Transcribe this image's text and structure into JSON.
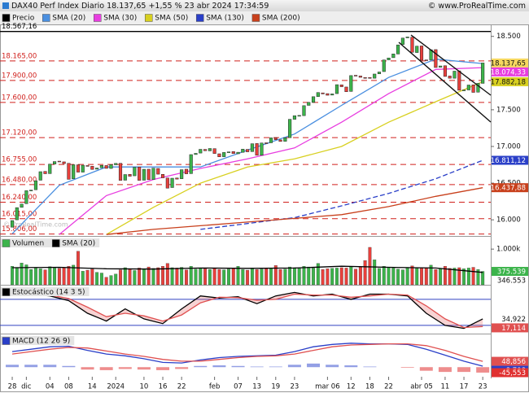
{
  "header": {
    "title": "DAX40 Perf Index Diario 18.137,65 +1,55 % 23 abr 2024 17:34:59",
    "source": "© www.ProRealTime.com"
  },
  "chart_data": [
    {
      "type": "candlestick",
      "legend": "Precio",
      "legend_color": "#000000",
      "up_color": "#3cb44b",
      "down_color": "#e8403c",
      "x": [
        0,
        1,
        2,
        3,
        4,
        5,
        6,
        7,
        8,
        9,
        10,
        11,
        12,
        13,
        14,
        15,
        16,
        17,
        18,
        19,
        20,
        21,
        22,
        23,
        24,
        25,
        26,
        27,
        28,
        29,
        30,
        31,
        32,
        33,
        34,
        35,
        36,
        37,
        38,
        39,
        40,
        41,
        42,
        43,
        44,
        45,
        46,
        47,
        48,
        49,
        50,
        51,
        52,
        53,
        54,
        55,
        56,
        57,
        58,
        59,
        60,
        61,
        62,
        63,
        64,
        65,
        66,
        67,
        68,
        69,
        70,
        71,
        72,
        73,
        74,
        75,
        76,
        77,
        78,
        79,
        80,
        81,
        82,
        83,
        84,
        85,
        86,
        87,
        88,
        89,
        90,
        91,
        92,
        93,
        94,
        95,
        96,
        97,
        98,
        99,
        100
      ],
      "open": [
        15900,
        16000,
        16170,
        16220,
        16400,
        16410,
        16540,
        16660,
        16630,
        16760,
        16800,
        16790,
        16770,
        16560,
        16750,
        16650,
        16740,
        16730,
        16690,
        16710,
        16740,
        16700,
        16750,
        16770,
        16540,
        16620,
        16600,
        16720,
        16540,
        16690,
        16550,
        16700,
        16620,
        16570,
        16440,
        16570,
        16560,
        16690,
        16630,
        16890,
        16910,
        16960,
        16940,
        16970,
        16900,
        16860,
        16920,
        16930,
        16900,
        16920,
        16960,
        16930,
        17040,
        16880,
        17050,
        17050,
        17120,
        17090,
        17070,
        17120,
        17370,
        17420,
        17420,
        17560,
        17600,
        17680,
        17730,
        17720,
        17700,
        17720,
        17840,
        17810,
        17750,
        17970,
        17960,
        17940,
        17940,
        17930,
        17990,
        18020,
        18180,
        18210,
        18260,
        18390,
        18480,
        18490,
        18280,
        18370,
        18180,
        18180,
        18320,
        18080,
        18100,
        17960,
        17930,
        18030,
        17770,
        17770,
        17840,
        17740,
        17860
      ],
      "close": [
        15990,
        16166,
        16215,
        16397,
        16405,
        16533,
        16656,
        16628,
        16759,
        16794,
        16791,
        16766,
        16552,
        16751,
        16650,
        16744,
        16733,
        16687,
        16706,
        16742,
        16701,
        16752,
        16769,
        16538,
        16617,
        16594,
        16716,
        16538,
        16689,
        16547,
        16704,
        16622,
        16572,
        16432,
        16567,
        16555,
        16683,
        16627,
        16889,
        16906,
        16961,
        16942,
        16972,
        16904,
        16859,
        16918,
        16926,
        16904,
        16921,
        16963,
        16927,
        17037,
        16880,
        17047,
        17046,
        17117,
        17092,
        17068,
        17118,
        17370,
        17419,
        17423,
        17556,
        17601,
        17678,
        17735,
        17716,
        17698,
        17716,
        17842,
        17814,
        17746,
        17966,
        17961,
        17942,
        17936,
        17933,
        17987,
        18015,
        18179,
        18206,
        18261,
        18384,
        18477,
        18492,
        18283,
        18367,
        18175,
        18175,
        18318,
        18076,
        18097,
        17954,
        17930,
        18026,
        17766,
        17770,
        17837,
        17737,
        17860,
        18137.65
      ],
      "close_label": "18.137,65",
      "series": [
        {
          "name": "SMA (20)",
          "color": "#4a8fe0",
          "x": [
            0,
            10,
            20,
            30,
            40,
            50,
            60,
            70,
            80,
            90,
            100
          ],
          "values": [
            15810,
            16470,
            16720,
            16720,
            16720,
            16950,
            17170,
            17560,
            17940,
            18190,
            18130
          ]
        },
        {
          "name": "SMA (30)",
          "color": "#e83ee0",
          "x": [
            0,
            10,
            20,
            30,
            40,
            50,
            60,
            70,
            80,
            90,
            100
          ],
          "values": [
            null,
            15800,
            16330,
            16550,
            16700,
            16830,
            16980,
            17330,
            17720,
            18050,
            18074.33
          ],
          "end_label": "18.074,33"
        },
        {
          "name": "SMA (50)",
          "color": "#d8d020",
          "x": [
            0,
            10,
            20,
            30,
            40,
            50,
            60,
            70,
            80,
            90,
            100
          ],
          "values": [
            null,
            null,
            15800,
            16170,
            16500,
            16720,
            16830,
            17000,
            17330,
            17610,
            17882.18
          ],
          "end_label": "17.882,18"
        },
        {
          "name": "SMA (130)",
          "color": "#2a3fc8",
          "dash": true,
          "x": [
            0,
            10,
            20,
            30,
            40,
            50,
            60,
            70,
            80,
            90,
            100
          ],
          "values": [
            null,
            null,
            null,
            null,
            15870,
            15950,
            16030,
            16190,
            16360,
            16560,
            16811.12
          ],
          "end_label": "16.811,12"
        },
        {
          "name": "SMA (200)",
          "color": "#c8401c",
          "x": [
            0,
            10,
            20,
            30,
            40,
            50,
            60,
            70,
            80,
            90,
            100
          ],
          "values": [
            null,
            null,
            15800,
            15870,
            15920,
            15970,
            16020,
            16070,
            16180,
            16320,
            16437.88
          ],
          "end_label": "16.437,88"
        }
      ],
      "levels": [
        {
          "value": 18567.16,
          "label": "18.567,16",
          "color": "#000000"
        },
        {
          "value": 18165,
          "label": "18.165,00",
          "color": "#d0201c"
        },
        {
          "value": 17900,
          "label": "17.900,00",
          "color": "#d0201c"
        },
        {
          "value": 17600,
          "label": "17.600,00",
          "color": "#d0201c"
        },
        {
          "value": 17120,
          "label": "17.120,00",
          "color": "#d0201c"
        },
        {
          "value": 16755,
          "label": "16.755,00",
          "color": "#d0201c"
        },
        {
          "value": 16480,
          "label": "16.480,00",
          "color": "#d0201c"
        },
        {
          "value": 16240,
          "label": "16.240,00",
          "color": "#d0201c"
        },
        {
          "value": 16015,
          "label": "16.015,00",
          "color": "#d0201c"
        },
        {
          "value": 15806,
          "label": "15.806,00",
          "color": "#d0201c"
        }
      ],
      "watermark": "© ProRealTime.com",
      "xlim": [
        -2.6,
        101.7
      ],
      "xticks": [
        {
          "value": 0,
          "label": "28"
        },
        {
          "value": 3,
          "label": "dic"
        },
        {
          "value": 8,
          "label": "04"
        },
        {
          "value": 12,
          "label": "08"
        },
        {
          "value": 17,
          "label": "14"
        },
        {
          "value": 22,
          "label": "2024"
        },
        {
          "value": 28,
          "label": "10"
        },
        {
          "value": 32,
          "label": "16"
        },
        {
          "value": 36,
          "label": "22"
        },
        {
          "value": 43,
          "label": "feb"
        },
        {
          "value": 48,
          "label": "07"
        },
        {
          "value": 52,
          "label": "13"
        },
        {
          "value": 56,
          "label": "19"
        },
        {
          "value": 60,
          "label": "23"
        },
        {
          "value": 67,
          "label": "mar 06"
        },
        {
          "value": 72,
          "label": "12"
        },
        {
          "value": 76,
          "label": "18"
        },
        {
          "value": 80,
          "label": "22"
        },
        {
          "value": 87,
          "label": "abr 05"
        },
        {
          "value": 92,
          "label": "11"
        },
        {
          "value": 96,
          "label": "17"
        },
        {
          "value": 100,
          "label": "23"
        }
      ],
      "ylim": [
        15780,
        18630
      ],
      "yticks": [
        {
          "value": 18500,
          "label": "18.500"
        },
        {
          "value": 17500,
          "label": "17.500"
        },
        {
          "value": 17000,
          "label": "17.000"
        },
        {
          "value": 16500,
          "label": "16.500"
        },
        {
          "value": 16000,
          "label": "16.000"
        }
      ]
    },
    {
      "type": "volume",
      "legend": "Volumen",
      "legend_color": "#3cb44b",
      "values": [
        520000,
        480000,
        610000,
        560000,
        430000,
        470000,
        450000,
        420000,
        510000,
        470000,
        460000,
        480000,
        520000,
        550000,
        940000,
        380000,
        410000,
        440000,
        350000,
        330000,
        210000,
        260000,
        300000,
        420000,
        480000,
        440000,
        400000,
        470000,
        440000,
        500000,
        460000,
        480000,
        520000,
        600000,
        480000,
        470000,
        490000,
        420000,
        520000,
        440000,
        470000,
        450000,
        430000,
        460000,
        430000,
        420000,
        440000,
        460000,
        520000,
        430000,
        410000,
        470000,
        430000,
        440000,
        450000,
        460000,
        540000,
        430000,
        440000,
        500000,
        480000,
        460000,
        520000,
        500000,
        470000,
        600000,
        430000,
        450000,
        460000,
        470000,
        480000,
        470000,
        520000,
        440000,
        500000,
        680000,
        1050000,
        700000,
        460000,
        520000,
        490000,
        470000,
        440000,
        420000,
        470000,
        530000,
        460000,
        480000,
        470000,
        550000,
        430000,
        450000,
        520000,
        460000,
        470000,
        480000,
        450000,
        470000,
        490000,
        430000,
        375539
      ],
      "end_label": "375.539",
      "end_color": "#3cb44b",
      "series": [
        {
          "name": "SMA (20)",
          "color": "#000000",
          "x": [
            0,
            10,
            20,
            30,
            40,
            50,
            60,
            70,
            80,
            90,
            100
          ],
          "values": [
            480000,
            490000,
            450000,
            440000,
            470000,
            460000,
            470000,
            520000,
            490000,
            470000,
            346553
          ],
          "end_label": "346.553"
        }
      ],
      "ylim": [
        0,
        1300000
      ],
      "yticks": [
        {
          "value": 1000000,
          "label": "1.000k"
        }
      ]
    },
    {
      "type": "oscillator",
      "legend": "Estocástico (14 3 5)",
      "legend_color": "#000000",
      "hlines": [
        80,
        20
      ],
      "hline_color": "#3040c0",
      "series": [
        {
          "color": "#000000",
          "x": [
            0,
            4,
            8,
            12,
            16,
            20,
            24,
            28,
            32,
            36,
            40,
            44,
            48,
            52,
            56,
            60,
            64,
            68,
            72,
            76,
            80,
            84,
            88,
            92,
            96,
            100
          ],
          "values": [
            92,
            92,
            88,
            77,
            48,
            30,
            58,
            35,
            24,
            58,
            88,
            83,
            86,
            70,
            88,
            96,
            88,
            92,
            80,
            92,
            92,
            88,
            48,
            20,
            13,
            34.922
          ],
          "end_label": "34,922",
          "end_color": "#ffffff"
        },
        {
          "color": "#e05050",
          "x": [
            0,
            4,
            8,
            12,
            16,
            20,
            24,
            28,
            32,
            36,
            40,
            44,
            48,
            52,
            56,
            60,
            64,
            68,
            72,
            76,
            80,
            84,
            88,
            92,
            96,
            100
          ],
          "values": [
            90,
            92,
            90,
            82,
            62,
            40,
            48,
            42,
            30,
            44,
            72,
            85,
            84,
            78,
            80,
            92,
            90,
            90,
            85,
            88,
            92,
            90,
            65,
            35,
            15,
            17.114
          ],
          "end_label": "17,114",
          "end_color": "#e05050"
        }
      ],
      "ylim": [
        1,
        108
      ]
    },
    {
      "type": "macd",
      "legend": "MACD (12 26 9)",
      "legend_color": "#2a3fc8",
      "hist": {
        "pos_color": "#3a50d0",
        "neg_color": "#e03030",
        "x": [
          0,
          4,
          8,
          12,
          16,
          20,
          24,
          28,
          32,
          36,
          40,
          44,
          48,
          52,
          56,
          60,
          64,
          68,
          72,
          76,
          80,
          84,
          88,
          92,
          96,
          100
        ],
        "values": [
          20,
          20,
          20,
          10,
          -20,
          -25,
          -15,
          -20,
          -25,
          -15,
          10,
          15,
          10,
          5,
          5,
          20,
          30,
          20,
          15,
          5,
          0,
          -5,
          -30,
          -40,
          -40,
          -45.553
        ],
        "end_label": "-45,553",
        "end_color": "#e03030"
      },
      "series": [
        {
          "color": "#2a3fc8",
          "x": [
            0,
            4,
            8,
            12,
            16,
            20,
            24,
            28,
            32,
            36,
            40,
            44,
            48,
            52,
            56,
            60,
            64,
            68,
            72,
            76,
            80,
            84,
            88,
            92,
            96,
            100
          ],
          "values": [
            130,
            150,
            170,
            175,
            140,
            110,
            95,
            70,
            40,
            35,
            60,
            80,
            90,
            95,
            100,
            130,
            170,
            190,
            200,
            195,
            195,
            190,
            150,
            100,
            50,
            8.708
          ],
          "end_label": "8,708",
          "end_color": "#2a3fc8"
        },
        {
          "color": "#e05050",
          "x": [
            0,
            4,
            8,
            12,
            16,
            20,
            24,
            28,
            32,
            36,
            40,
            44,
            48,
            52,
            56,
            60,
            64,
            68,
            72,
            76,
            80,
            84,
            88,
            92,
            96,
            100
          ],
          "values": [
            110,
            130,
            150,
            165,
            160,
            135,
            110,
            90,
            65,
            50,
            50,
            65,
            80,
            90,
            95,
            110,
            140,
            170,
            185,
            190,
            195,
            195,
            180,
            140,
            90,
            48.856
          ],
          "end_label": "48,856",
          "end_color": "#e05050"
        }
      ],
      "ylim": [
        -80,
        260
      ]
    }
  ]
}
